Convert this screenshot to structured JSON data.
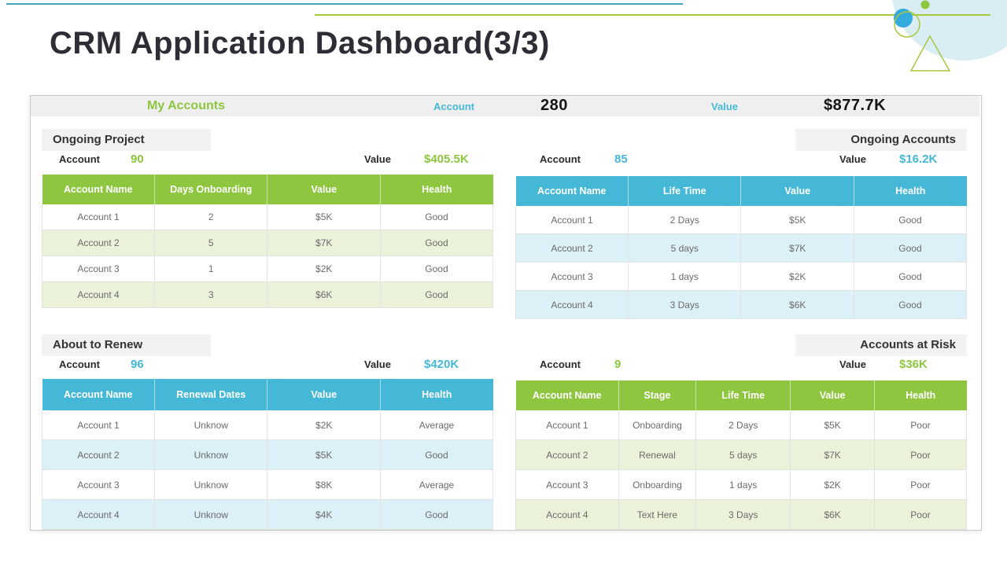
{
  "page": {
    "title": "CRM Application Dashboard(3/3)"
  },
  "colors": {
    "green_accent": "#8dc63f",
    "blue_accent": "#45b8d8",
    "light_green_row": "#eaf3da",
    "light_blue_row": "#dcf0f8",
    "summary_bar_gray": "#efefef",
    "section_box_gray": "#f2f2f2",
    "title_color": "#2d2d35",
    "teal_line": "#41a7c5",
    "lime_line": "#a8c83c",
    "pale_circle": "#daedf4",
    "blue_circle": "#35aadc"
  },
  "summary_bar": {
    "title": "My Accounts",
    "account_label": "Account",
    "account_value": "280",
    "value_label": "Value",
    "value_amount": "$877.7K"
  },
  "sections": [
    {
      "name": "Ongoing Project",
      "accent": "green",
      "account_label": "Account",
      "account_value": "90",
      "value_label": "Value",
      "value_amount": "$405.5K",
      "columns": [
        "Account Name",
        "Days Onboarding",
        "Value",
        "Health"
      ],
      "rows": [
        [
          "Account 1",
          "2",
          "$5K",
          "Good"
        ],
        [
          "Account 2",
          "5",
          "$7K",
          "Good"
        ],
        [
          "Account 3",
          "1",
          "$2K",
          "Good"
        ],
        [
          "Account 4",
          "3",
          "$6K",
          "Good"
        ]
      ]
    },
    {
      "name": "Ongoing Accounts",
      "accent": "blue",
      "account_label": "Account",
      "account_value": "85",
      "value_label": "Value",
      "value_amount": "$16.2K",
      "columns": [
        "Account Name",
        "Life Time",
        "Value",
        "Health"
      ],
      "rows": [
        [
          "Account 1",
          "2 Days",
          "$5K",
          "Good"
        ],
        [
          "Account 2",
          "5 days",
          "$7K",
          "Good"
        ],
        [
          "Account 3",
          "1 days",
          "$2K",
          "Good"
        ],
        [
          "Account 4",
          "3 Days",
          "$6K",
          "Good"
        ]
      ]
    },
    {
      "name": "About to Renew",
      "accent": "blue",
      "account_label": "Account",
      "account_value": "96",
      "value_label": "Value",
      "value_amount": "$420K",
      "columns": [
        "Account Name",
        "Renewal Dates",
        "Value",
        "Health"
      ],
      "rows": [
        [
          "Account 1",
          "Unknow",
          "$2K",
          "Average"
        ],
        [
          "Account 2",
          "Unknow",
          "$5K",
          "Good"
        ],
        [
          "Account 3",
          "Unknow",
          "$8K",
          "Average"
        ],
        [
          "Account 4",
          "Unknow",
          "$4K",
          "Good"
        ]
      ]
    },
    {
      "name": "Accounts at Risk",
      "accent": "green",
      "account_label": "Account",
      "account_value": "9",
      "value_label": "Value",
      "value_amount": "$36K",
      "columns": [
        "Account Name",
        "Stage",
        "Life Time",
        "Value",
        "Health"
      ],
      "rows": [
        [
          "Account 1",
          "Onboarding",
          "2 Days",
          "$5K",
          "Poor"
        ],
        [
          "Account 2",
          "Renewal",
          "5 days",
          "$7K",
          "Poor"
        ],
        [
          "Account 3",
          "Onboarding",
          "1 days",
          "$2K",
          "Poor"
        ],
        [
          "Account 4",
          "Text Here",
          "3 Days",
          "$6K",
          "Poor"
        ]
      ]
    }
  ]
}
